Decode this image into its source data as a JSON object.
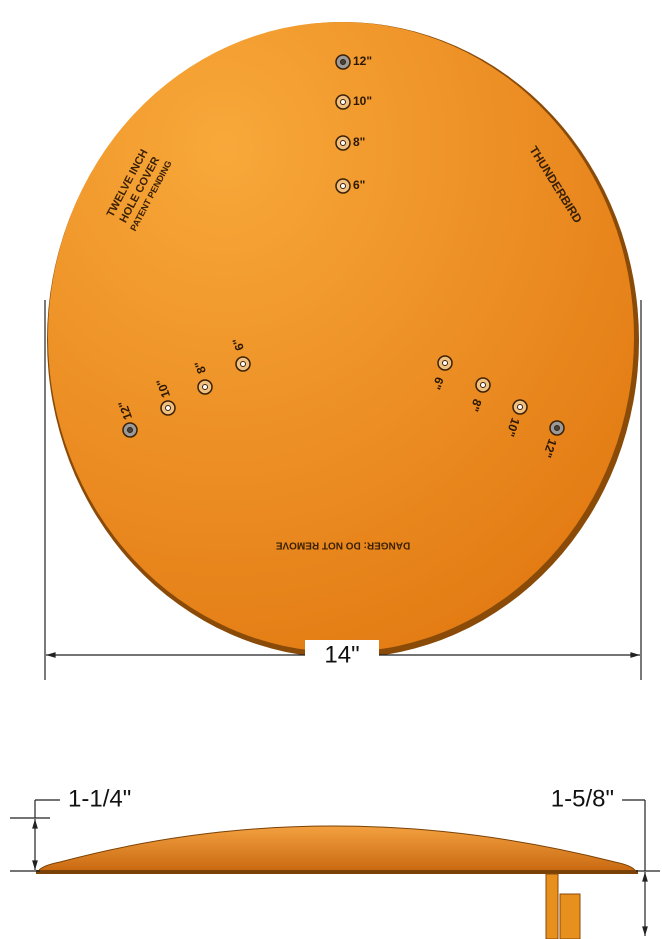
{
  "top_view": {
    "holes_top": [
      "12\"",
      "10\"",
      "8\"",
      "6\""
    ],
    "holes_left": [
      "6\"",
      "8\"",
      "10\"",
      "12\""
    ],
    "holes_right": [
      "6\"",
      "8\"",
      "10\"",
      "12\""
    ],
    "brand_left": [
      "TWELVE INCH",
      "HOLE COVER",
      "PATENT PENDING"
    ],
    "brand_right": "THUNDERBIRD",
    "warning": "DANGER: DO NOT REMOVE"
  },
  "dimensions": {
    "diameter": "14\"",
    "height_plate": "1-1/4\"",
    "height_total": "1-5/8\""
  }
}
